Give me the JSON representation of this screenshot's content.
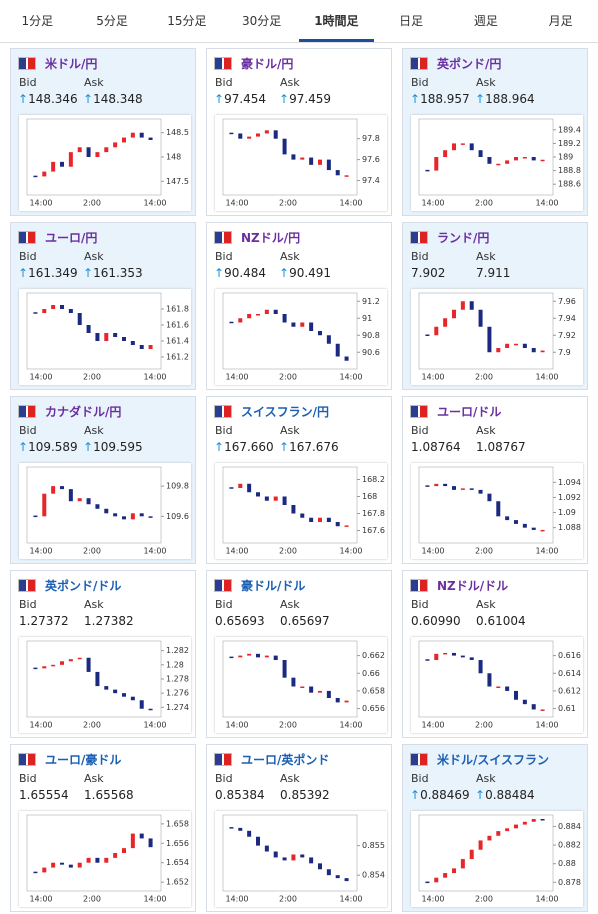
{
  "tabs": [
    "1分足",
    "5分足",
    "15分足",
    "30分足",
    "1時間足",
    "日足",
    "週足",
    "月足"
  ],
  "selected_tab": 4,
  "bid_label": "Bid",
  "ask_label": "Ask",
  "x_labels": [
    "14:00",
    "2:00",
    "14:00"
  ],
  "cards": [
    {
      "name": "米ドル/円",
      "bid": "148.346",
      "ask": "148.348",
      "up": true,
      "highlight": true,
      "visited": true,
      "ylim": [
        147.3,
        148.7
      ],
      "yticks": [
        147.5,
        148,
        148.5
      ],
      "closes": [
        147.6,
        147.7,
        147.9,
        147.8,
        148.1,
        148.2,
        148.0,
        148.1,
        148.2,
        148.3,
        148.4,
        148.5,
        148.4,
        148.35
      ]
    },
    {
      "name": "豪ドル/円",
      "bid": "97.454",
      "ask": "97.459",
      "up": true,
      "highlight": false,
      "visited": true,
      "ylim": [
        97.3,
        97.95
      ],
      "yticks": [
        97.4,
        97.6,
        97.8
      ],
      "closes": [
        97.85,
        97.8,
        97.82,
        97.85,
        97.88,
        97.8,
        97.65,
        97.6,
        97.62,
        97.55,
        97.6,
        97.5,
        97.45,
        97.45
      ]
    },
    {
      "name": "英ポンド/円",
      "bid": "188.957",
      "ask": "188.964",
      "up": true,
      "highlight": true,
      "visited": true,
      "ylim": [
        188.5,
        189.5
      ],
      "yticks": [
        188.6,
        188.8,
        189,
        189.2,
        189.4
      ],
      "closes": [
        188.8,
        189.0,
        189.1,
        189.2,
        189.2,
        189.1,
        189.0,
        188.9,
        188.9,
        188.95,
        189.0,
        189.0,
        188.95,
        188.96
      ]
    },
    {
      "name": "ユーロ/円",
      "bid": "161.349",
      "ask": "161.353",
      "up": true,
      "highlight": true,
      "visited": true,
      "ylim": [
        161.1,
        161.95
      ],
      "yticks": [
        161.2,
        161.4,
        161.6,
        161.8
      ],
      "closes": [
        161.75,
        161.8,
        161.85,
        161.8,
        161.75,
        161.6,
        161.5,
        161.4,
        161.5,
        161.45,
        161.4,
        161.35,
        161.3,
        161.35
      ]
    },
    {
      "name": "NZドル/円",
      "bid": "90.484",
      "ask": "90.491",
      "up": true,
      "highlight": false,
      "visited": true,
      "ylim": [
        90.45,
        91.25
      ],
      "yticks": [
        90.6,
        90.8,
        91,
        91.2
      ],
      "closes": [
        90.95,
        91.0,
        91.05,
        91.05,
        91.1,
        91.05,
        90.95,
        90.9,
        90.95,
        90.85,
        90.8,
        90.7,
        90.55,
        90.5
      ]
    },
    {
      "name": "ランド/円",
      "bid": "7.902",
      "ask": "7.911",
      "up": false,
      "highlight": true,
      "visited": true,
      "ylim": [
        7.885,
        7.965
      ],
      "yticks": [
        7.9,
        7.92,
        7.94,
        7.96
      ],
      "closes": [
        7.92,
        7.93,
        7.94,
        7.95,
        7.96,
        7.95,
        7.93,
        7.9,
        7.905,
        7.91,
        7.91,
        7.905,
        7.9,
        7.902
      ]
    },
    {
      "name": "カナダドル/円",
      "bid": "109.589",
      "ask": "109.595",
      "up": true,
      "highlight": true,
      "visited": true,
      "ylim": [
        109.45,
        109.9
      ],
      "yticks": [
        109.6,
        109.8
      ],
      "closes": [
        109.6,
        109.75,
        109.8,
        109.78,
        109.7,
        109.72,
        109.68,
        109.65,
        109.62,
        109.6,
        109.58,
        109.62,
        109.6,
        109.59
      ]
    },
    {
      "name": "スイスフラン/円",
      "bid": "167.660",
      "ask": "167.676",
      "up": true,
      "highlight": false,
      "visited": false,
      "ylim": [
        167.5,
        168.3
      ],
      "yticks": [
        167.6,
        167.8,
        168,
        168.2
      ],
      "closes": [
        168.1,
        168.15,
        168.05,
        168.0,
        167.95,
        168.0,
        167.9,
        167.8,
        167.75,
        167.7,
        167.75,
        167.7,
        167.65,
        167.66
      ]
    },
    {
      "name": "ユーロ/ドル",
      "bid": "1.08764",
      "ask": "1.08767",
      "up": false,
      "highlight": false,
      "visited": true,
      "ylim": [
        1.0865,
        1.0955
      ],
      "yticks": [
        1.088,
        1.09,
        1.092,
        1.094
      ],
      "closes": [
        1.0935,
        1.0938,
        1.0935,
        1.093,
        1.0932,
        1.093,
        1.0925,
        1.0915,
        1.0895,
        1.089,
        1.0885,
        1.088,
        1.0877,
        1.0877
      ]
    },
    {
      "name": "英ポンド/ドル",
      "bid": "1.27372",
      "ask": "1.27382",
      "up": false,
      "highlight": false,
      "visited": false,
      "ylim": [
        1.2732,
        1.2828
      ],
      "yticks": [
        1.274,
        1.276,
        1.278,
        1.28,
        1.282
      ],
      "closes": [
        1.2795,
        1.2798,
        1.28,
        1.2805,
        1.2808,
        1.281,
        1.279,
        1.277,
        1.2765,
        1.276,
        1.2755,
        1.275,
        1.2738,
        1.2737
      ]
    },
    {
      "name": "豪ドル/ドル",
      "bid": "0.65693",
      "ask": "0.65697",
      "up": false,
      "highlight": false,
      "visited": false,
      "ylim": [
        0.6555,
        0.6632
      ],
      "yticks": [
        0.656,
        0.658,
        0.66,
        0.662
      ],
      "closes": [
        0.6618,
        0.662,
        0.6622,
        0.6618,
        0.662,
        0.6615,
        0.6595,
        0.6585,
        0.6585,
        0.6578,
        0.658,
        0.6572,
        0.6567,
        0.6569
      ]
    },
    {
      "name": "NZドル/ドル",
      "bid": "0.60990",
      "ask": "0.61004",
      "up": false,
      "highlight": false,
      "visited": true,
      "ylim": [
        0.6095,
        0.6172
      ],
      "yticks": [
        0.61,
        0.612,
        0.614,
        0.616
      ],
      "closes": [
        0.6155,
        0.6162,
        0.6163,
        0.616,
        0.6158,
        0.6155,
        0.614,
        0.6125,
        0.6125,
        0.612,
        0.611,
        0.6105,
        0.6099,
        0.6099
      ]
    },
    {
      "name": "ユーロ/豪ドル",
      "bid": "1.65554",
      "ask": "1.65568",
      "up": false,
      "highlight": false,
      "visited": false,
      "ylim": [
        1.6515,
        1.6585
      ],
      "yticks": [
        1.652,
        1.654,
        1.656,
        1.658
      ],
      "closes": [
        1.653,
        1.6535,
        1.654,
        1.6538,
        1.6535,
        1.654,
        1.6545,
        1.654,
        1.6545,
        1.655,
        1.6555,
        1.657,
        1.6565,
        1.6556
      ]
    },
    {
      "name": "ユーロ/英ポンド",
      "bid": "0.85384",
      "ask": "0.85392",
      "up": false,
      "highlight": false,
      "visited": false,
      "ylim": [
        0.8536,
        0.8559
      ],
      "yticks": [
        0.854,
        0.855
      ],
      "closes": [
        0.8556,
        0.8555,
        0.8553,
        0.855,
        0.8548,
        0.8546,
        0.8545,
        0.8547,
        0.8546,
        0.8544,
        0.8542,
        0.854,
        0.8539,
        0.8538
      ]
    },
    {
      "name": "米ドル/スイスフラン",
      "bid": "0.88469",
      "ask": "0.88484",
      "up": true,
      "highlight": true,
      "visited": false,
      "ylim": [
        0.8775,
        0.8848
      ],
      "yticks": [
        0.878,
        0.88,
        0.882,
        0.884
      ],
      "closes": [
        0.878,
        0.8785,
        0.879,
        0.8795,
        0.8805,
        0.8815,
        0.8825,
        0.883,
        0.8835,
        0.8838,
        0.8842,
        0.8845,
        0.8848,
        0.8847
      ]
    }
  ]
}
